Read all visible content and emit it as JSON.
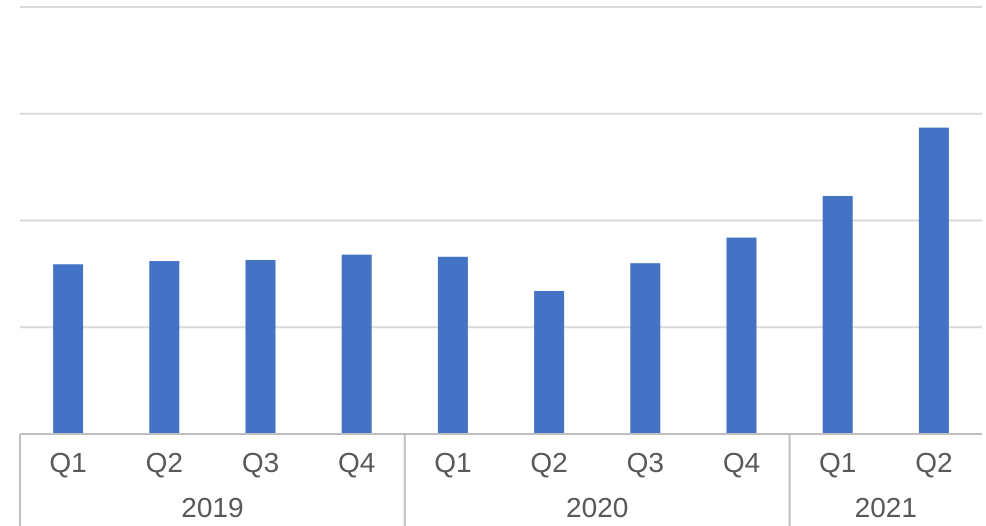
{
  "chart_data": {
    "type": "bar",
    "categories": [
      {
        "quarter": "Q1",
        "year": "2019"
      },
      {
        "quarter": "Q2",
        "year": "2019"
      },
      {
        "quarter": "Q3",
        "year": "2019"
      },
      {
        "quarter": "Q4",
        "year": "2019"
      },
      {
        "quarter": "Q1",
        "year": "2020"
      },
      {
        "quarter": "Q2",
        "year": "2020"
      },
      {
        "quarter": "Q3",
        "year": "2020"
      },
      {
        "quarter": "Q4",
        "year": "2020"
      },
      {
        "quarter": "Q1",
        "year": "2021"
      },
      {
        "quarter": "Q2",
        "year": "2021"
      }
    ],
    "groups": [
      "2019",
      "2020",
      "2021"
    ],
    "values": [
      1.59,
      1.62,
      1.63,
      1.68,
      1.66,
      1.34,
      1.6,
      1.84,
      2.23,
      2.87
    ],
    "ylim": [
      0,
      4
    ],
    "gridlines": [
      1,
      2,
      3,
      4
    ],
    "y_tick_labels_shown": false,
    "title": "",
    "xlabel": "",
    "ylabel": "",
    "bar_color": "#4472c4",
    "grid_color": "#d9d9d9",
    "axis_color": "#bfbfbf",
    "text_color": "#595959"
  }
}
